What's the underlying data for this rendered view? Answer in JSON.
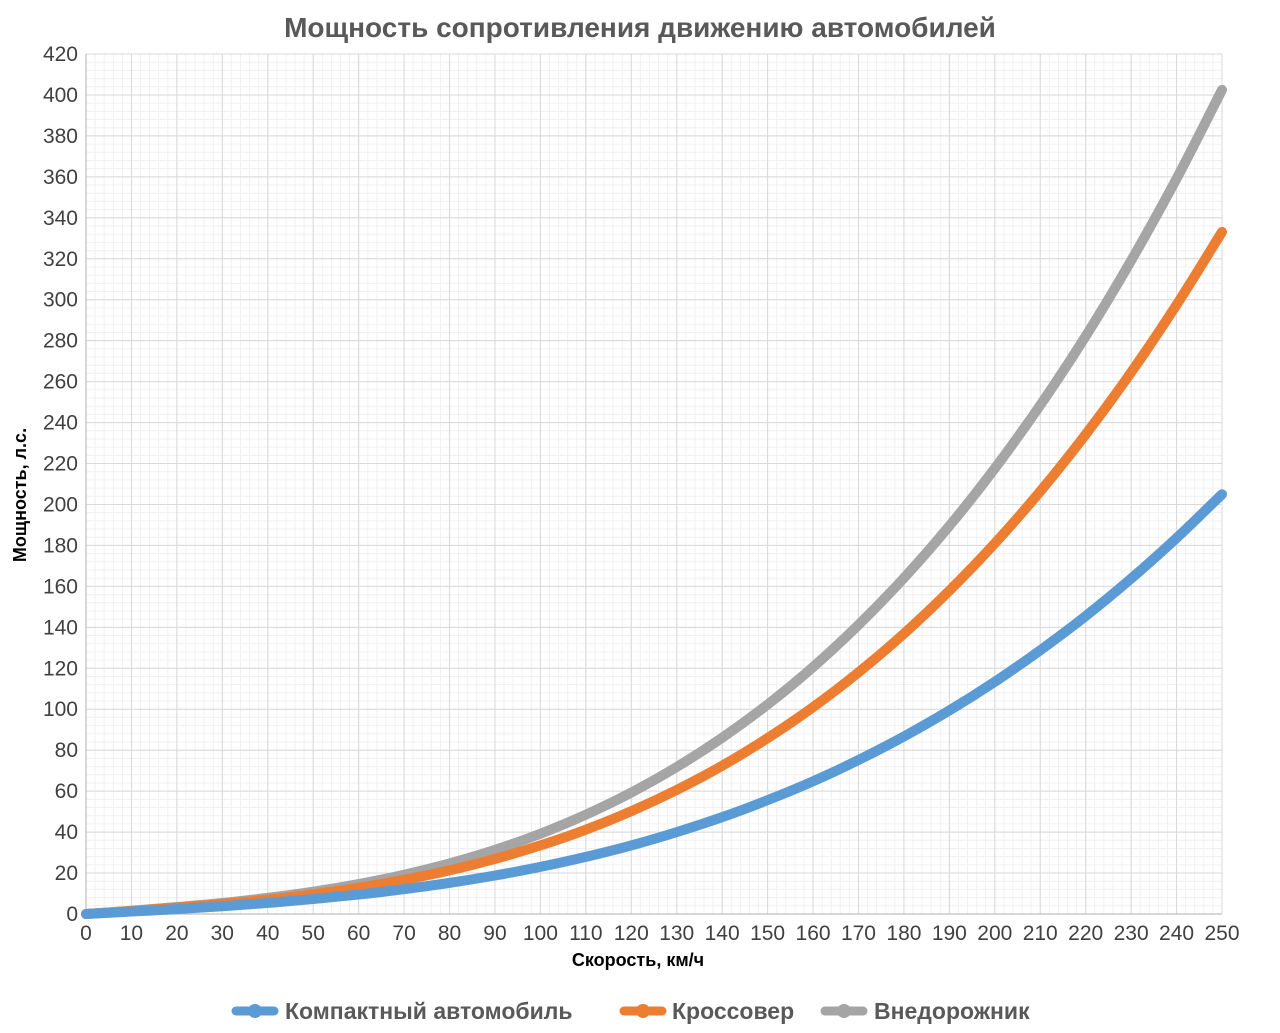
{
  "chart_data": {
    "type": "line",
    "title": "Мощность сопротивления движению автомобилей",
    "xlabel": "Скорость, км/ч",
    "ylabel": "Мощность, л.с.",
    "xlim": [
      0,
      250
    ],
    "ylim": [
      0,
      420
    ],
    "grid": true,
    "legend": "bottom",
    "x_ticks": [
      0,
      10,
      20,
      30,
      40,
      50,
      60,
      70,
      80,
      90,
      100,
      110,
      120,
      130,
      140,
      150,
      160,
      170,
      180,
      190,
      200,
      210,
      220,
      230,
      240,
      250
    ],
    "y_ticks": [
      0,
      20,
      40,
      60,
      80,
      100,
      120,
      140,
      160,
      180,
      200,
      220,
      240,
      260,
      280,
      300,
      320,
      340,
      360,
      380,
      400,
      420
    ],
    "x": [
      0,
      10,
      20,
      30,
      40,
      50,
      60,
      70,
      80,
      90,
      100,
      110,
      120,
      130,
      140,
      150,
      160,
      170,
      180,
      190,
      200,
      210,
      220,
      230,
      240,
      250
    ],
    "series": [
      {
        "name": "Компактный автомобиль",
        "color": "#5B9BD5",
        "values": [
          0,
          1.2,
          2.4,
          3.8,
          5.4,
          7.3,
          9.5,
          12.1,
          15.2,
          18.8,
          23.0,
          27.9,
          33.5,
          40.0,
          47.3,
          55.6,
          64.8,
          75.2,
          86.7,
          99.4,
          113.4,
          128.8,
          145.5,
          163.8,
          183.6,
          205.0
        ]
      },
      {
        "name": "Кроссовер",
        "color": "#ED7D31",
        "values": [
          0,
          1.5,
          3.1,
          4.9,
          7.0,
          9.6,
          12.8,
          16.7,
          21.3,
          26.9,
          33.5,
          41.2,
          50.2,
          60.6,
          72.4,
          85.9,
          101.0,
          118.0,
          136.9,
          157.9,
          181.0,
          206.4,
          234.2,
          264.5,
          297.5,
          333.1
        ]
      },
      {
        "name": "Внедорожник",
        "color": "#A5A5A5",
        "values": [
          0,
          1.6,
          3.4,
          5.4,
          7.9,
          10.9,
          14.6,
          19.2,
          24.7,
          31.3,
          39.2,
          48.5,
          59.3,
          71.8,
          86.1,
          102.3,
          120.6,
          141.2,
          164.1,
          189.5,
          217.6,
          248.5,
          282.2,
          319.1,
          359.1,
          402.5
        ]
      }
    ]
  }
}
